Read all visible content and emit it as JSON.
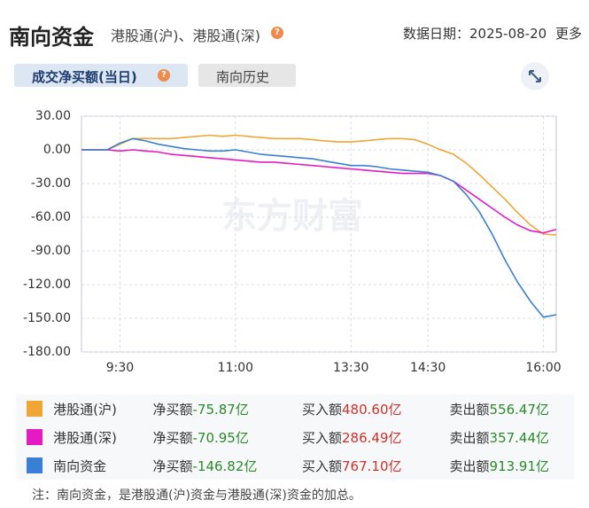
{
  "header": {
    "title": "南向资金",
    "subtitle": "港股通(沪)、港股通(深)",
    "help": "?",
    "date": "数据日期：2025-08-20",
    "more": "更多"
  },
  "tabs": [
    {
      "label": "成交净买额(当日)",
      "help": "?"
    },
    {
      "label": "南向历史"
    }
  ],
  "chart_data": {
    "type": "line",
    "watermark": "东方财富",
    "categories": [
      null,
      null,
      null,
      "9:30",
      null,
      null,
      null,
      null,
      null,
      null,
      null,
      null,
      "11:00",
      null,
      null,
      null,
      null,
      null,
      null,
      null,
      null,
      "13:30",
      null,
      null,
      null,
      null,
      null,
      "14:30",
      null,
      null,
      null,
      null,
      null,
      null,
      null,
      null,
      "16:00",
      null
    ],
    "series": [
      {
        "name": "港股通(沪)",
        "color": "#f0a637",
        "values": [
          0,
          0,
          0,
          5,
          10,
          10,
          10,
          10,
          11,
          12,
          13,
          12,
          13,
          12,
          11,
          10,
          10,
          10,
          9,
          8,
          7,
          7,
          8,
          9,
          10,
          10,
          9,
          5,
          0,
          -4,
          -12,
          -22,
          -33,
          -44,
          -56,
          -67,
          -75,
          -75.87
        ]
      },
      {
        "name": "港股通(深)",
        "color": "#e41ac4",
        "values": [
          0,
          0,
          0,
          -1,
          0,
          -1,
          -2,
          -4,
          -5,
          -6,
          -7,
          -8,
          -9,
          -10,
          -11,
          -11,
          -12,
          -13,
          -14,
          -15,
          -16,
          -17,
          -18,
          -19,
          -20,
          -21,
          -21,
          -21,
          -23,
          -28,
          -36,
          -44,
          -52,
          -60,
          -67,
          -72,
          -74,
          -70.95
        ]
      },
      {
        "name": "南向资金",
        "color": "#3a7fd6",
        "values": [
          0,
          0,
          0,
          6,
          10,
          8,
          5,
          3,
          1,
          0,
          -1,
          -1,
          0,
          -2,
          -4,
          -5,
          -6,
          -7,
          -8,
          -10,
          -12,
          -14,
          -14,
          -15,
          -17,
          -18,
          -19,
          -20,
          -23,
          -28,
          -40,
          -55,
          -75,
          -98,
          -118,
          -135,
          -149,
          -146.82
        ]
      }
    ],
    "ylim": [
      -180,
      30
    ],
    "yticks": [
      {
        "value": 30,
        "label": "30.00"
      },
      {
        "value": 0,
        "label": "0.00"
      },
      {
        "value": -30,
        "label": "-30.00"
      },
      {
        "value": -60,
        "label": "-60.00"
      },
      {
        "value": -90,
        "label": "-90.00"
      },
      {
        "value": -120,
        "label": "-120.00"
      },
      {
        "value": -150,
        "label": "-150.00"
      },
      {
        "value": -180,
        "label": "-180.00"
      }
    ],
    "grid": true
  },
  "summary": {
    "net_label": "净买额",
    "buy_label": "买入额",
    "sell_label": "卖出额",
    "rows": [
      {
        "net": "-75.87亿",
        "buy": "480.60亿",
        "sell": "556.47亿"
      },
      {
        "net": "-70.95亿",
        "buy": "286.49亿",
        "sell": "357.44亿"
      },
      {
        "net": "-146.82亿",
        "buy": "767.10亿",
        "sell": "913.91亿"
      }
    ]
  },
  "note": "注：南向资金，是港股通(沪)资金与港股通(深)资金的加总。"
}
